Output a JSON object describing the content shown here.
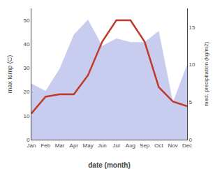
{
  "chart_data": {
    "type": "line",
    "categories": [
      "Jan",
      "Feb",
      "Mar",
      "Apr",
      "May",
      "Jun",
      "Jul",
      "Aug",
      "Sep",
      "Oct",
      "Nov",
      "Dec"
    ],
    "series": [
      {
        "type": "area",
        "axis": "y2",
        "color": "#b0b8e8",
        "values": [
          7.5,
          6.5,
          9.5,
          14.0,
          16.0,
          12.5,
          13.5,
          13.0,
          13.0,
          14.5,
          5.0,
          10.0
        ]
      },
      {
        "type": "line",
        "color": "#c0392b",
        "values": [
          11,
          18,
          19,
          19,
          27,
          41,
          50,
          50,
          41,
          22,
          16,
          14
        ]
      }
    ],
    "xlabel": "date (month)",
    "ylabel": "max temp (C)",
    "y2label": "med. precipitation (kg/m2)",
    "ylim": [
      0,
      55
    ],
    "yticks": [
      0,
      10,
      20,
      30,
      40,
      50
    ],
    "y2lim": [
      0,
      17.5
    ],
    "y2ticks": [
      0,
      5,
      10,
      15
    ],
    "grid": false
  }
}
